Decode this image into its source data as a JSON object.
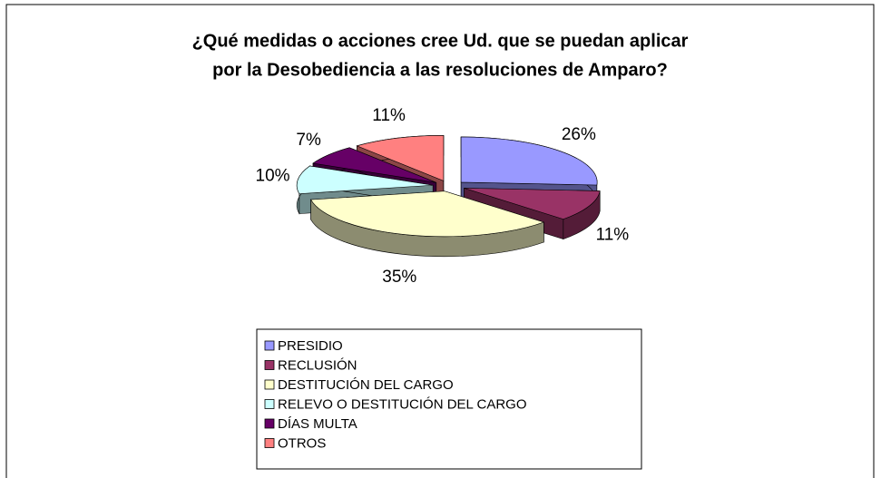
{
  "chart_data": {
    "type": "pie3d",
    "title": [
      "¿Qué medidas o acciones cree Ud. que se puedan aplicar",
      "por la Desobediencia a las resoluciones de Amparo?"
    ],
    "categories": [
      "PRESIDIO",
      "RECLUSIÓN",
      "DESTITUCIÓN DEL CARGO",
      "RELEVO O DESTITUCIÓN DEL CARGO",
      "DÍAS MULTA",
      "OTROS"
    ],
    "values": [
      26,
      11,
      35,
      10,
      7,
      11
    ],
    "value_labels": [
      "26%",
      "11%",
      "35%",
      "10%",
      "7%",
      "11%"
    ],
    "colors": [
      "#9999ff",
      "#993366",
      "#ffffcc",
      "#ccffff",
      "#660066",
      "#ff8080"
    ],
    "legend": "bottom"
  }
}
